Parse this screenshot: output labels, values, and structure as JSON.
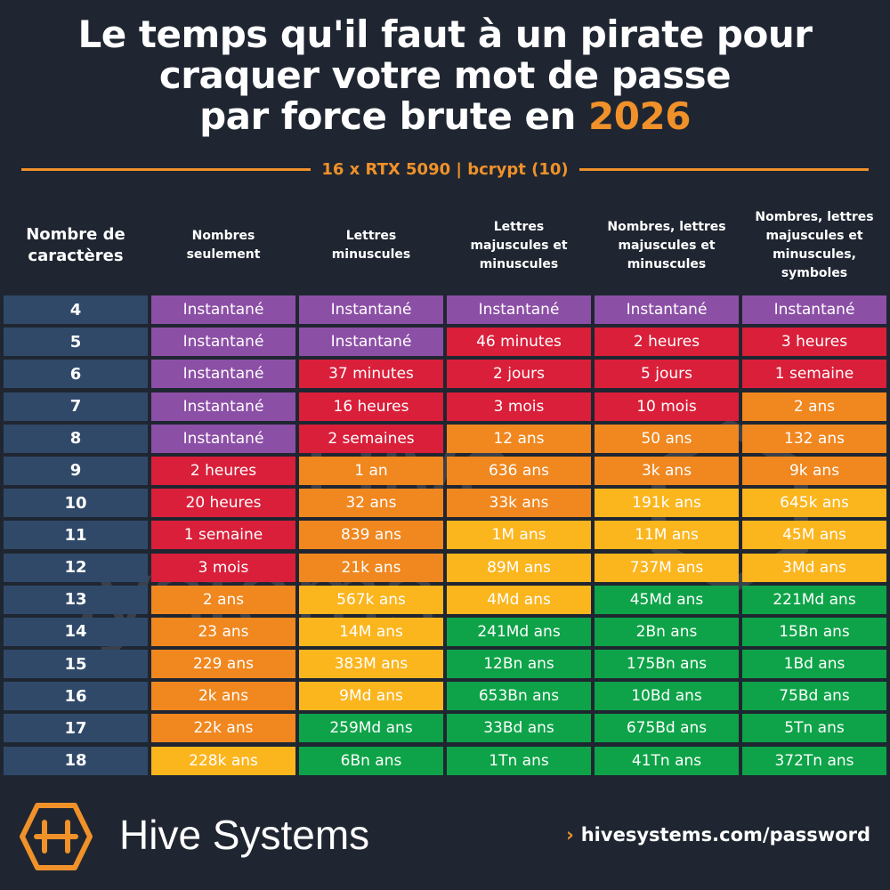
{
  "title": {
    "line1": "Le temps qu'il faut à un pirate pour",
    "line2": "craquer votre mot de passe",
    "line3_prefix": "par force brute en ",
    "year": "2026"
  },
  "subtitle": "16 x RTX 5090 | bcrypt (10)",
  "colors": {
    "background": "#1f2631",
    "accent": "#f0912a",
    "length_cell": "#304968",
    "purple": "#8c4fa6",
    "red": "#d91f3a",
    "orange": "#f0871f",
    "yellow": "#fbb51d",
    "green": "#0ea348"
  },
  "chart_data": {
    "type": "table",
    "columns": [
      "Nombre de caractères",
      "Nombres seulement",
      "Lettres minuscules",
      "Lettres majuscules et minuscules",
      "Nombres, lettres majuscules et minuscules",
      "Nombres, lettres majuscules et minuscules, symboles"
    ],
    "rows": [
      {
        "len": "4",
        "cells": [
          {
            "t": "Instantané",
            "c": "purple"
          },
          {
            "t": "Instantané",
            "c": "purple"
          },
          {
            "t": "Instantané",
            "c": "purple"
          },
          {
            "t": "Instantané",
            "c": "purple"
          },
          {
            "t": "Instantané",
            "c": "purple"
          }
        ]
      },
      {
        "len": "5",
        "cells": [
          {
            "t": "Instantané",
            "c": "purple"
          },
          {
            "t": "Instantané",
            "c": "purple"
          },
          {
            "t": "46 minutes",
            "c": "red"
          },
          {
            "t": "2 heures",
            "c": "red"
          },
          {
            "t": "3 heures",
            "c": "red"
          }
        ]
      },
      {
        "len": "6",
        "cells": [
          {
            "t": "Instantané",
            "c": "purple"
          },
          {
            "t": "37 minutes",
            "c": "red"
          },
          {
            "t": "2 jours",
            "c": "red"
          },
          {
            "t": "5 jours",
            "c": "red"
          },
          {
            "t": "1 semaine",
            "c": "red"
          }
        ]
      },
      {
        "len": "7",
        "cells": [
          {
            "t": "Instantané",
            "c": "purple"
          },
          {
            "t": "16 heures",
            "c": "red"
          },
          {
            "t": "3 mois",
            "c": "red"
          },
          {
            "t": "10 mois",
            "c": "red"
          },
          {
            "t": "2 ans",
            "c": "orange"
          }
        ]
      },
      {
        "len": "8",
        "cells": [
          {
            "t": "Instantané",
            "c": "purple"
          },
          {
            "t": "2 semaines",
            "c": "red"
          },
          {
            "t": "12 ans",
            "c": "orange"
          },
          {
            "t": "50 ans",
            "c": "orange"
          },
          {
            "t": "132 ans",
            "c": "orange"
          }
        ]
      },
      {
        "len": "9",
        "cells": [
          {
            "t": "2 heures",
            "c": "red"
          },
          {
            "t": "1 an",
            "c": "orange"
          },
          {
            "t": "636 ans",
            "c": "orange"
          },
          {
            "t": "3k ans",
            "c": "orange"
          },
          {
            "t": "9k ans",
            "c": "orange"
          }
        ]
      },
      {
        "len": "10",
        "cells": [
          {
            "t": "20 heures",
            "c": "red"
          },
          {
            "t": "32 ans",
            "c": "orange"
          },
          {
            "t": "33k ans",
            "c": "orange"
          },
          {
            "t": "191k ans",
            "c": "yellow"
          },
          {
            "t": "645k ans",
            "c": "yellow"
          }
        ]
      },
      {
        "len": "11",
        "cells": [
          {
            "t": "1 semaine",
            "c": "red"
          },
          {
            "t": "839 ans",
            "c": "orange"
          },
          {
            "t": "1M ans",
            "c": "yellow"
          },
          {
            "t": "11M ans",
            "c": "yellow"
          },
          {
            "t": "45M ans",
            "c": "yellow"
          }
        ]
      },
      {
        "len": "12",
        "cells": [
          {
            "t": "3 mois",
            "c": "red"
          },
          {
            "t": "21k ans",
            "c": "orange"
          },
          {
            "t": "89M ans",
            "c": "yellow"
          },
          {
            "t": "737M ans",
            "c": "yellow"
          },
          {
            "t": "3Md ans",
            "c": "yellow"
          }
        ]
      },
      {
        "len": "13",
        "cells": [
          {
            "t": "2 ans",
            "c": "orange"
          },
          {
            "t": "567k ans",
            "c": "yellow"
          },
          {
            "t": "4Md ans",
            "c": "yellow"
          },
          {
            "t": "45Md ans",
            "c": "green"
          },
          {
            "t": "221Md ans",
            "c": "green"
          }
        ]
      },
      {
        "len": "14",
        "cells": [
          {
            "t": "23 ans",
            "c": "orange"
          },
          {
            "t": "14M ans",
            "c": "yellow"
          },
          {
            "t": "241Md ans",
            "c": "green"
          },
          {
            "t": "2Bn ans",
            "c": "green"
          },
          {
            "t": "15Bn ans",
            "c": "green"
          }
        ]
      },
      {
        "len": "15",
        "cells": [
          {
            "t": "229 ans",
            "c": "orange"
          },
          {
            "t": "383M ans",
            "c": "yellow"
          },
          {
            "t": "12Bn ans",
            "c": "green"
          },
          {
            "t": "175Bn ans",
            "c": "green"
          },
          {
            "t": "1Bd ans",
            "c": "green"
          }
        ]
      },
      {
        "len": "16",
        "cells": [
          {
            "t": "2k ans",
            "c": "orange"
          },
          {
            "t": "9Md ans",
            "c": "yellow"
          },
          {
            "t": "653Bn ans",
            "c": "green"
          },
          {
            "t": "10Bd ans",
            "c": "green"
          },
          {
            "t": "75Bd ans",
            "c": "green"
          }
        ]
      },
      {
        "len": "17",
        "cells": [
          {
            "t": "22k ans",
            "c": "orange"
          },
          {
            "t": "259Md ans",
            "c": "green"
          },
          {
            "t": "33Bd ans",
            "c": "green"
          },
          {
            "t": "675Bd ans",
            "c": "green"
          },
          {
            "t": "5Tn ans",
            "c": "green"
          }
        ]
      },
      {
        "len": "18",
        "cells": [
          {
            "t": "228k ans",
            "c": "yellow"
          },
          {
            "t": "6Bn ans",
            "c": "green"
          },
          {
            "t": "1Tn ans",
            "c": "green"
          },
          {
            "t": "41Tn ans",
            "c": "green"
          },
          {
            "t": "372Tn ans",
            "c": "green"
          }
        ]
      }
    ]
  },
  "header_lines": [
    [
      "Nombre de",
      "caractères"
    ],
    [
      "Nombres",
      "seulement"
    ],
    [
      "Lettres",
      "minuscules"
    ],
    [
      "Lettres",
      "majuscules et",
      "minuscules"
    ],
    [
      "Nombres, lettres",
      "majuscules et",
      "minuscules"
    ],
    [
      "Nombres, lettres",
      "majuscules et",
      "minuscules,",
      "symboles"
    ]
  ],
  "watermark": {
    "line1": "Hive",
    "line2": "Systems"
  },
  "footer": {
    "logo_icon": "hive-hexagon-logo",
    "brand": "Hive Systems",
    "link_chevron": "›",
    "link": "hivesystems.com/password"
  }
}
